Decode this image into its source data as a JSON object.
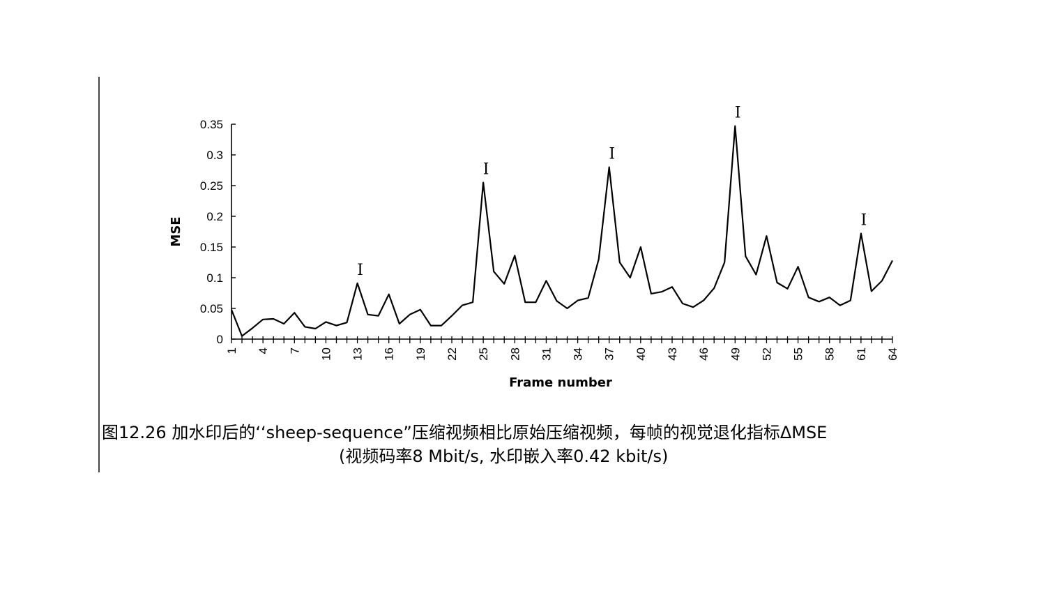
{
  "caption": {
    "line1": "图12.26 加水印后的‘‘sheep-sequence”压缩视频相比原始压缩视频，每帧的视觉退化指标ΔMSE",
    "line2": "(视频码率8 Mbit/s, 水印嵌入率0.42 kbit/s)"
  },
  "chart_data": {
    "type": "line",
    "xlabel": "Frame number",
    "ylabel": "MSE",
    "ylim": [
      0,
      0.35
    ],
    "xlim": [
      1,
      64
    ],
    "y_ticks": [
      "0",
      "0.05",
      "0.1",
      "0.15",
      "0.2",
      "0.25",
      "0.3",
      "0.35"
    ],
    "x_tick_labels": [
      "1",
      "4",
      "7",
      "10",
      "13",
      "16",
      "19",
      "22",
      "25",
      "28",
      "31",
      "34",
      "37",
      "40",
      "43",
      "46",
      "49",
      "52",
      "55",
      "58",
      "61",
      "64"
    ],
    "annotation_marker": "I",
    "annotations": [
      {
        "frame": 13,
        "label": "I"
      },
      {
        "frame": 25,
        "label": "I"
      },
      {
        "frame": 37,
        "label": "I"
      },
      {
        "frame": 49,
        "label": "I"
      },
      {
        "frame": 61,
        "label": "I"
      }
    ],
    "series": [
      {
        "x": [
          1,
          2,
          3,
          4,
          5,
          6,
          7,
          8,
          9,
          10,
          11,
          12,
          13,
          14,
          15,
          16,
          17,
          18,
          19,
          20,
          21,
          22,
          23,
          24,
          25,
          26,
          27,
          28,
          29,
          30,
          31,
          32,
          33,
          34,
          35,
          36,
          37,
          38,
          39,
          40,
          41,
          42,
          43,
          44,
          45,
          46,
          47,
          48,
          49,
          50,
          51,
          52,
          53,
          54,
          55,
          56,
          57,
          58,
          59,
          60,
          61,
          62,
          63,
          64
        ],
        "values": [
          0.048,
          0.005,
          0.018,
          0.032,
          0.033,
          0.025,
          0.043,
          0.02,
          0.017,
          0.028,
          0.022,
          0.027,
          0.091,
          0.04,
          0.038,
          0.073,
          0.025,
          0.04,
          0.048,
          0.022,
          0.022,
          0.038,
          0.055,
          0.06,
          0.255,
          0.11,
          0.09,
          0.136,
          0.06,
          0.06,
          0.095,
          0.062,
          0.05,
          0.063,
          0.067,
          0.13,
          0.28,
          0.125,
          0.1,
          0.15,
          0.074,
          0.077,
          0.085,
          0.058,
          0.052,
          0.063,
          0.083,
          0.125,
          0.347,
          0.135,
          0.105,
          0.168,
          0.092,
          0.082,
          0.118,
          0.068,
          0.061,
          0.068,
          0.055,
          0.063,
          0.172,
          0.078,
          0.095,
          0.128
        ]
      }
    ]
  }
}
